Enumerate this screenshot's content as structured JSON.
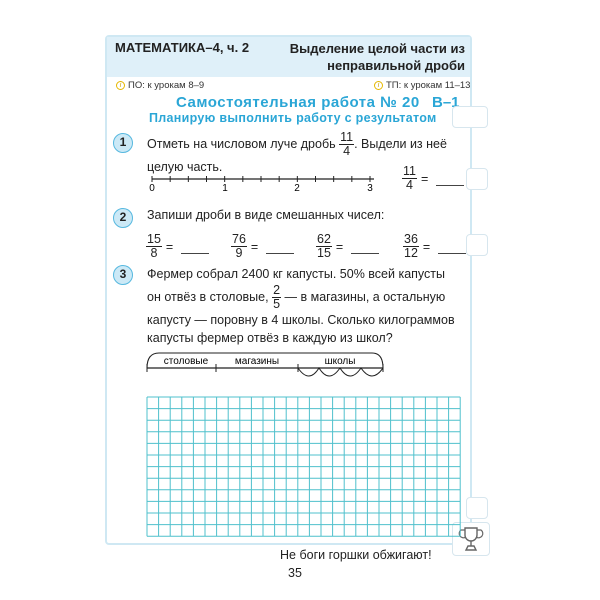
{
  "header": {
    "subject": "МАТЕМАТИКА–4, ч. 2",
    "topic_line1": "Выделение целой части из",
    "topic_line2": "неправильной дроби"
  },
  "refs": {
    "po": "ПО: к урокам 8–9",
    "tp": "ТП: к урокам 11–13",
    "icon": "info-icon"
  },
  "title": "Самостоятельная работа № 20",
  "variant": "В–1",
  "plan": "Планирую выполнить работу с результатом",
  "task1": {
    "num": "1",
    "text_before": "Отметь на числовом луче дробь",
    "frac_n": "11",
    "frac_d": "4",
    "text_after": ". Выдели из неё",
    "text_line2": "целую часть.",
    "axis_labels": [
      "0",
      "1",
      "2",
      "3"
    ],
    "answer": {
      "n": "11",
      "d": "4",
      "eq": "="
    }
  },
  "task2": {
    "num": "2",
    "text": "Запиши дроби в виде смешанных чисел:",
    "fractions": [
      {
        "n": "15",
        "d": "8"
      },
      {
        "n": "76",
        "d": "9"
      },
      {
        "n": "62",
        "d": "15"
      },
      {
        "n": "36",
        "d": "12"
      }
    ],
    "eq": "="
  },
  "task3": {
    "num": "3",
    "line1": "Фермер собрал 2400 кг капусты. 50% всей капусты",
    "line2a": "он отвёз в столовые,",
    "frac_n": "2",
    "frac_d": "5",
    "line2b": "— в магазины, а остальную",
    "line3": "капусту — поровну в 4 школы. Сколько килограммов",
    "line4": "капусты фермер отвёз в каждую из школ?",
    "diagram_labels": [
      "столовые",
      "магазины",
      "школы"
    ]
  },
  "footer": {
    "proverb": "Не боги горшки обжигают!",
    "page": "35",
    "icon": "trophy-icon"
  },
  "colors": {
    "accent": "#2aa6d6",
    "header_bg": "#dff0f9",
    "grid": "#4fc0cc"
  }
}
